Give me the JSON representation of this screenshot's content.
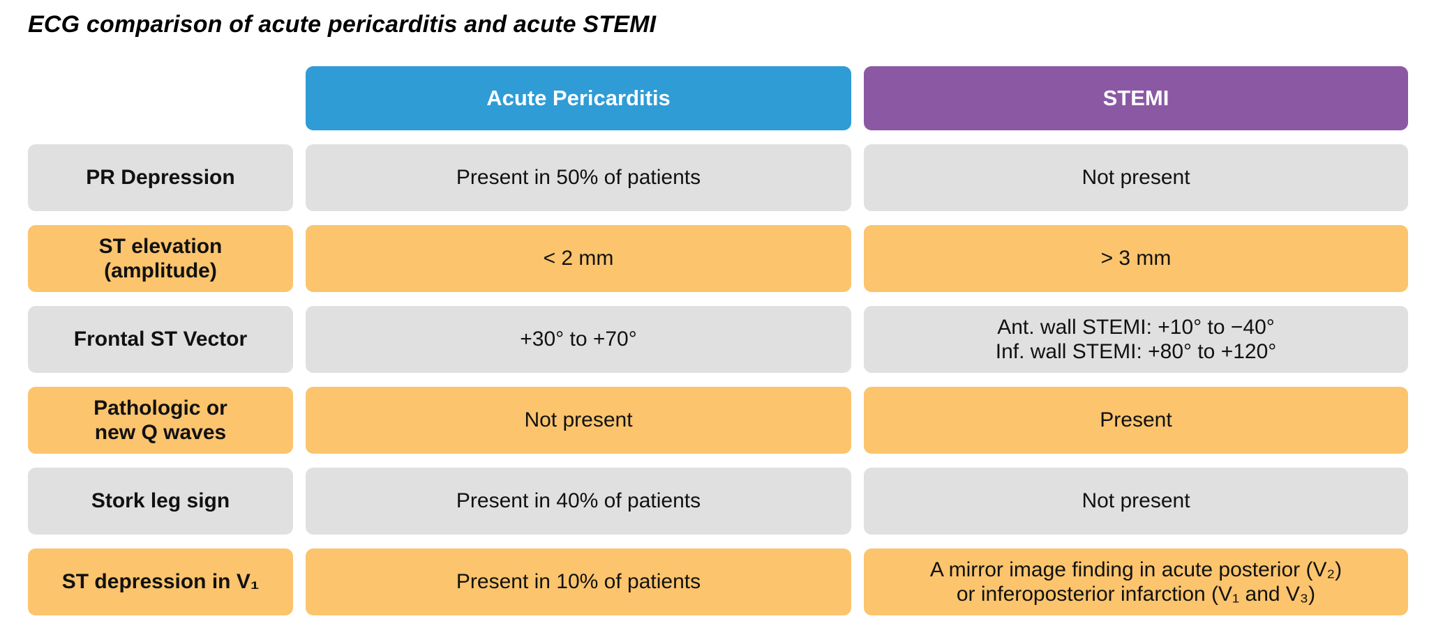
{
  "title": "ECG comparison of acute pericarditis and acute STEMI",
  "columns": {
    "pericarditis": "Acute Pericarditis",
    "stemi": "STEMI"
  },
  "colors": {
    "pericarditis_header": "#2F9CD6",
    "stemi_header": "#8B58A4",
    "row_gray": "#E0E0E0",
    "row_orange": "#FBC46D",
    "header_text": "#FFFFFF",
    "text": "#111111",
    "background": "#FFFFFF"
  },
  "chart_data": {
    "type": "table",
    "title": "ECG comparison of acute pericarditis and acute STEMI",
    "columns": [
      "",
      "Acute Pericarditis",
      "STEMI"
    ],
    "rows": [
      [
        "PR Depression",
        "Present in 50% of patients",
        "Not present"
      ],
      [
        "ST elevation\n(amplitude)",
        "< 2 mm",
        "> 3 mm"
      ],
      [
        "Frontal ST Vector",
        "+30° to +70°",
        "Ant. wall STEMI: +10° to −40°\nInf. wall STEMI: +80° to +120°"
      ],
      [
        "Pathologic or\nnew Q waves",
        "Not present",
        "Present"
      ],
      [
        "Stork leg sign",
        "Present in 40% of patients",
        "Not present"
      ],
      [
        "ST depression in V₁",
        "Present in 10% of patients",
        "A mirror image finding in acute posterior (V₂)\nor inferoposterior infarction (V₁ and V₃)"
      ]
    ],
    "row_tones": [
      "gray",
      "orange",
      "gray",
      "orange",
      "gray",
      "orange"
    ],
    "legend_position": "none",
    "grid": false
  }
}
